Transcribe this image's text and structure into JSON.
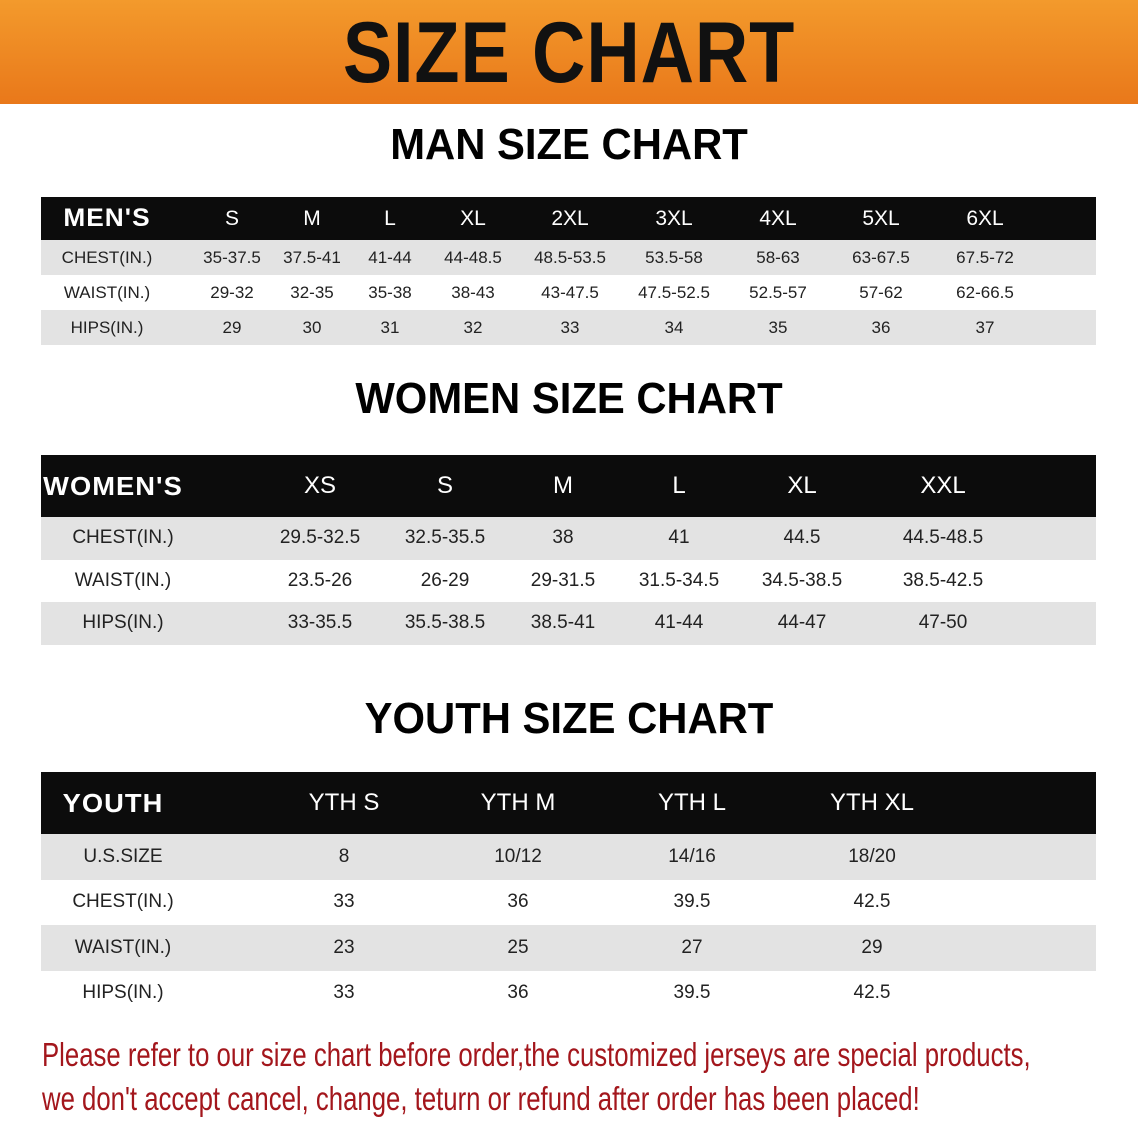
{
  "banner": {
    "title": "SIZE CHART",
    "color": "#ee861f"
  },
  "men": {
    "title": "MAN SIZE CHART",
    "header": [
      "MEN'S",
      "S",
      "M",
      "L",
      "XL",
      "2XL",
      "3XL",
      "4XL",
      "5XL",
      "6XL"
    ],
    "rows": [
      [
        "CHEST(IN.)",
        "35-37.5",
        "37.5-41",
        "41-44",
        "44-48.5",
        "48.5-53.5",
        "53.5-58",
        "58-63",
        "63-67.5",
        "67.5-72"
      ],
      [
        "WAIST(IN.)",
        "29-32",
        "32-35",
        "35-38",
        "38-43",
        "43-47.5",
        "47.5-52.5",
        "52.5-57",
        "57-62",
        "62-66.5"
      ],
      [
        "HIPS(IN.)",
        "29",
        "30",
        "31",
        "32",
        "33",
        "34",
        "35",
        "36",
        "37"
      ]
    ]
  },
  "women": {
    "title": "WOMEN SIZE CHART",
    "header": [
      "WOMEN'S",
      "XS",
      "S",
      "M",
      "L",
      "XL",
      "XXL"
    ],
    "rows": [
      [
        "CHEST(IN.)",
        "29.5-32.5",
        "32.5-35.5",
        "38",
        "41",
        "44.5",
        "44.5-48.5"
      ],
      [
        "WAIST(IN.)",
        "23.5-26",
        "26-29",
        "29-31.5",
        "31.5-34.5",
        "34.5-38.5",
        "38.5-42.5"
      ],
      [
        "HIPS(IN.)",
        "33-35.5",
        "35.5-38.5",
        "38.5-41",
        "41-44",
        "44-47",
        "47-50"
      ]
    ]
  },
  "youth": {
    "title": "YOUTH SIZE CHART",
    "header": [
      "YOUTH",
      "YTH S",
      "YTH M",
      "YTH L",
      "YTH XL"
    ],
    "rows": [
      [
        "U.S.SIZE",
        "8",
        "10/12",
        "14/16",
        "18/20"
      ],
      [
        "CHEST(IN.)",
        "33",
        "36",
        "39.5",
        "42.5"
      ],
      [
        "WAIST(IN.)",
        "23",
        "25",
        "27",
        "29"
      ],
      [
        "HIPS(IN.)",
        "33",
        "36",
        "39.5",
        "42.5"
      ]
    ]
  },
  "footer": {
    "line1": "Please refer to our size chart before order,the customized jerseys are special products,",
    "line2": "we don't accept cancel, change, teturn or refund after order has been placed!",
    "color": "#a3161c"
  }
}
